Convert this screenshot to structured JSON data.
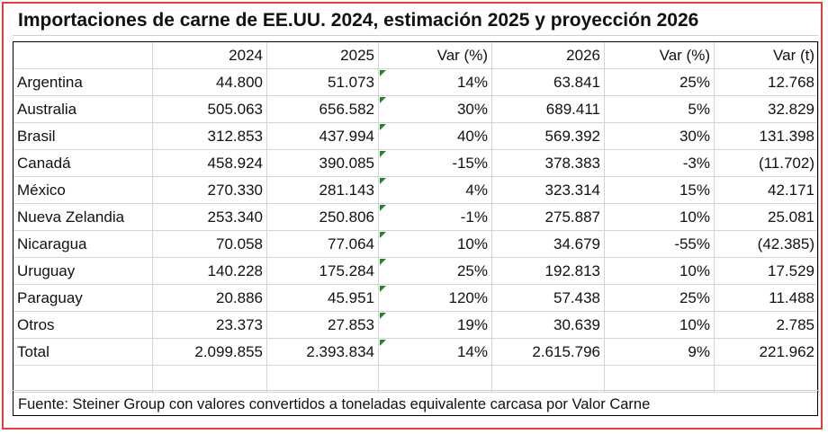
{
  "title": "Importaciones de carne de EE.UU. 2024, estimación 2025 y proyección 2026",
  "columns": [
    "",
    "2024",
    "2025",
    "Var (%)",
    "2026",
    "Var (%)",
    "Var (t)"
  ],
  "rows": [
    [
      "Argentina",
      "44.800",
      "51.073",
      "14%",
      "63.841",
      "25%",
      "12.768"
    ],
    [
      "Australia",
      "505.063",
      "656.582",
      "30%",
      "689.411",
      "5%",
      "32.829"
    ],
    [
      "Brasil",
      "312.853",
      "437.994",
      "40%",
      "569.392",
      "30%",
      "131.398"
    ],
    [
      "Canadá",
      "458.924",
      "390.085",
      "-15%",
      "378.383",
      "-3%",
      "(11.702)"
    ],
    [
      "México",
      "270.330",
      "281.143",
      "4%",
      "323.314",
      "15%",
      "42.171"
    ],
    [
      "Nueva Zelandia",
      "253.340",
      "250.806",
      "-1%",
      "275.887",
      "10%",
      "25.081"
    ],
    [
      "Nicaragua",
      "70.058",
      "77.064",
      "10%",
      "34.679",
      "-55%",
      "(42.385)"
    ],
    [
      "Uruguay",
      "140.228",
      "175.284",
      "25%",
      "192.813",
      "10%",
      "17.529"
    ],
    [
      "Paraguay",
      "20.886",
      "45.951",
      "120%",
      "57.438",
      "25%",
      "11.488"
    ],
    [
      "Otros",
      "23.373",
      "27.853",
      "19%",
      "30.639",
      "10%",
      "2.785"
    ],
    [
      "Total",
      "2.099.855",
      "2.393.834",
      "14%",
      "2.615.796",
      "9%",
      "221.962"
    ]
  ],
  "source": "Fuente: Steiner Group con valores convertidos a toneladas equivalente carcasa por Valor Carne",
  "colors": {
    "border": "#e0403a",
    "flag": "#2e7d32",
    "grid": "#d4d4d4"
  }
}
